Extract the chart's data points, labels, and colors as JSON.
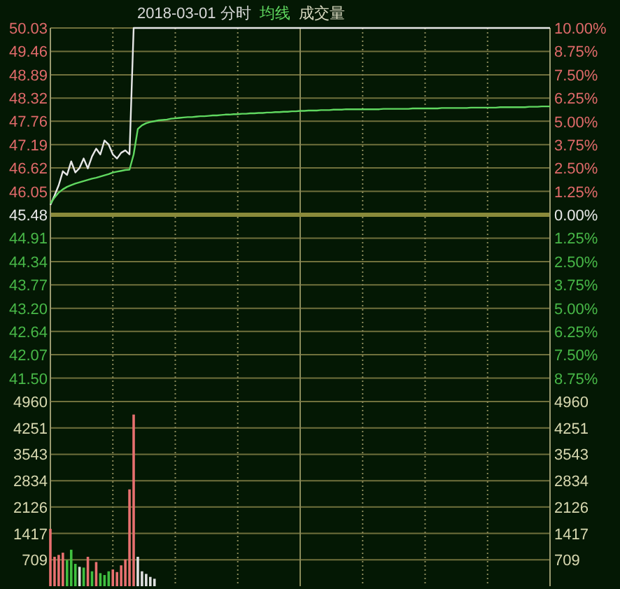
{
  "chart_data": [
    {
      "type": "line",
      "title": "2018-03-01 分时",
      "legend": "top left",
      "grid": true,
      "categories": [
        null,
        null,
        null,
        null,
        null,
        null,
        null,
        null,
        null,
        null,
        null,
        null,
        null,
        null,
        null,
        null,
        null,
        null,
        null,
        null,
        null,
        null,
        null,
        null,
        null,
        null,
        null,
        null,
        null,
        null,
        null,
        null,
        null,
        null,
        null,
        null,
        null,
        null,
        null,
        null,
        null,
        null,
        null,
        null,
        null,
        null,
        null,
        null,
        null,
        null,
        null,
        null,
        null,
        null,
        null,
        null,
        null,
        null,
        null,
        null,
        null,
        null,
        null,
        null,
        null,
        null,
        null,
        null,
        null,
        null,
        null,
        null,
        null,
        null,
        null,
        null,
        null,
        null,
        null,
        null,
        null,
        null,
        null,
        null,
        null,
        null,
        null,
        null,
        null,
        null,
        null,
        null,
        null,
        null,
        null,
        null,
        null,
        null,
        null,
        null,
        null,
        null,
        null,
        null,
        null,
        null,
        null,
        null,
        null,
        null,
        null,
        null,
        null,
        null,
        null,
        null,
        null,
        null,
        null,
        null,
        null
      ],
      "series": [
        {
          "color": "#e8e8e8",
          "values": [
            45.72,
            45.95,
            46.2,
            46.54,
            46.45,
            46.78,
            46.51,
            46.62,
            46.85,
            46.61,
            46.9,
            47.09,
            46.95,
            47.29,
            47.19,
            46.95,
            46.85,
            46.99,
            47.05,
            46.95,
            50.03,
            50.03,
            50.03,
            50.03,
            50.03,
            50.03,
            50.03,
            50.03,
            50.03,
            50.03,
            50.03,
            50.03,
            50.03,
            50.03,
            50.03,
            50.03,
            50.03,
            50.03,
            50.03,
            50.03,
            50.03,
            50.03,
            50.03,
            50.03,
            50.03,
            50.03,
            50.03,
            50.03,
            50.03,
            50.03,
            50.03,
            50.03,
            50.03,
            50.03,
            50.03,
            50.03,
            50.03,
            50.03,
            50.03,
            50.03,
            50.03,
            50.03,
            50.03,
            50.03,
            50.03,
            50.03,
            50.03,
            50.03,
            50.03,
            50.03,
            50.03,
            50.03,
            50.03,
            50.03,
            50.03,
            50.03,
            50.03,
            50.03,
            50.03,
            50.03,
            50.03,
            50.03,
            50.03,
            50.03,
            50.03,
            50.03,
            50.03,
            50.03,
            50.03,
            50.03,
            50.03,
            50.03,
            50.03,
            50.03,
            50.03,
            50.03,
            50.03,
            50.03,
            50.03,
            50.03,
            50.03,
            50.03,
            50.03,
            50.03,
            50.03,
            50.03,
            50.03,
            50.03,
            50.03,
            50.03,
            50.03,
            50.03,
            50.03,
            50.03,
            50.03,
            50.03,
            50.03,
            50.03,
            50.03,
            50.03,
            50.03
          ]
        },
        {
          "name": "均线",
          "color": "#60d860",
          "values": [
            45.75,
            45.9,
            46.02,
            46.1,
            46.16,
            46.2,
            46.24,
            46.27,
            46.3,
            46.33,
            46.36,
            46.38,
            46.41,
            46.44,
            46.47,
            46.51,
            46.53,
            46.55,
            46.57,
            46.58,
            46.95,
            47.57,
            47.66,
            47.71,
            47.74,
            47.76,
            47.78,
            47.79,
            47.8,
            47.82,
            47.83,
            47.84,
            47.85,
            47.86,
            47.86,
            47.87,
            47.88,
            47.88,
            47.89,
            47.9,
            47.9,
            47.91,
            47.92,
            47.92,
            47.93,
            47.93,
            47.94,
            47.94,
            47.95,
            47.95,
            47.96,
            47.96,
            47.97,
            47.97,
            47.98,
            47.98,
            47.99,
            47.99,
            48.0,
            48.0,
            48.01,
            48.01,
            48.02,
            48.02,
            48.02,
            48.03,
            48.03,
            48.03,
            48.04,
            48.04,
            48.04,
            48.05,
            48.05,
            48.05,
            48.05,
            48.05,
            48.05,
            48.05,
            48.05,
            48.05,
            48.06,
            48.06,
            48.06,
            48.06,
            48.06,
            48.06,
            48.06,
            48.07,
            48.07,
            48.07,
            48.07,
            48.07,
            48.07,
            48.07,
            48.08,
            48.08,
            48.08,
            48.08,
            48.08,
            48.08,
            48.08,
            48.09,
            48.09,
            48.09,
            48.09,
            48.09,
            48.09,
            48.09,
            48.1,
            48.1,
            48.1,
            48.1,
            48.1,
            48.1,
            48.1,
            48.11,
            48.11,
            48.11,
            48.12,
            48.12,
            48.12
          ]
        }
      ],
      "ylim": [
        40.93,
        50.03
      ],
      "yticks": [
        50.03,
        49.46,
        48.89,
        48.32,
        47.76,
        47.19,
        46.62,
        46.05,
        45.48,
        44.91,
        44.34,
        43.77,
        {
          "value": 43.2,
          "label": "43.20"
        },
        42.64,
        42.07,
        {
          "value": 41.5,
          "label": "41.50"
        }
      ],
      "y2lim": [
        -10,
        10
      ],
      "y2ticks": [
        {
          "value": 10,
          "label": "10.00%"
        },
        {
          "value": 8.75,
          "label": "8.75%"
        },
        {
          "value": 7.5,
          "label": "7.50%"
        },
        {
          "value": 6.25,
          "label": "6.25%"
        },
        {
          "value": 5,
          "label": "5.00%"
        },
        {
          "value": 3.75,
          "label": "3.75%"
        },
        {
          "value": 2.5,
          "label": "2.50%"
        },
        {
          "value": 1.25,
          "label": "1.25%"
        },
        {
          "value": 0,
          "label": "0.00%"
        },
        {
          "value": -1.25,
          "label": "1.25%"
        },
        {
          "value": -2.5,
          "label": "2.50%"
        },
        {
          "value": -3.75,
          "label": "3.75%"
        },
        {
          "value": -5,
          "label": "5.00%"
        },
        {
          "value": -6.25,
          "label": "6.25%"
        },
        {
          "value": -7.5,
          "label": "7.50%"
        },
        {
          "value": -8.75,
          "label": "8.75%"
        }
      ],
      "ref_lines": [
        {
          "axis": "y",
          "value": 45.48,
          "color": "#8a8a3a"
        }
      ]
    },
    {
      "type": "bar",
      "legend": "top left",
      "grid": true,
      "categories": [
        null,
        null,
        null,
        null,
        null,
        null,
        null,
        null,
        null,
        null,
        null,
        null,
        null,
        null,
        null,
        null,
        null,
        null,
        null,
        null,
        null,
        null,
        null,
        null,
        null,
        null,
        null,
        null,
        null,
        null,
        null,
        null,
        null,
        null,
        null,
        null,
        null,
        null,
        null,
        null,
        null,
        null,
        null,
        null,
        null,
        null,
        null,
        null,
        null,
        null,
        null,
        null,
        null,
        null,
        null,
        null,
        null,
        null,
        null,
        null,
        null,
        null,
        null,
        null,
        null,
        null,
        null,
        null,
        null,
        null,
        null,
        null,
        null,
        null,
        null,
        null,
        null,
        null,
        null,
        null,
        null,
        null,
        null,
        null,
        null,
        null,
        null,
        null,
        null,
        null,
        null,
        null,
        null,
        null,
        null,
        null,
        null,
        null,
        null,
        null,
        null,
        null,
        null,
        null,
        null,
        null,
        null,
        null,
        null,
        null,
        null,
        null,
        null,
        null,
        null,
        null,
        null,
        null,
        null,
        null,
        null
      ],
      "series": [
        {
          "name": "成交量",
          "values": [
            1540,
            790,
            840,
            900,
            700,
            980,
            600,
            520,
            500,
            790,
            400,
            650,
            350,
            300,
            400,
            450,
            380,
            560,
            720,
            2600,
            4610,
            790,
            400,
            330,
            250,
            200,
            null,
            null,
            null,
            null,
            null,
            null,
            null,
            null,
            null,
            null,
            null,
            null,
            null,
            null,
            null,
            null,
            null,
            null,
            null,
            null,
            null,
            null,
            null,
            null,
            null,
            null,
            null,
            null,
            null,
            null,
            null,
            null,
            null,
            null,
            null,
            null,
            null,
            null,
            null,
            null,
            null,
            null,
            null,
            null,
            null,
            null,
            null,
            null,
            null,
            null,
            null,
            null,
            null,
            null,
            null,
            null,
            null,
            null,
            null,
            null,
            null,
            null,
            null,
            null,
            null,
            null,
            null,
            null,
            null,
            null,
            null,
            null,
            null,
            null,
            null,
            null,
            null,
            null,
            null,
            null,
            null,
            null,
            null,
            null,
            null,
            null,
            null,
            null,
            null,
            null,
            null,
            null,
            null,
            null,
            null
          ],
          "colors": [
            "#e87070",
            "#e87070",
            "#e87070",
            "#e87070",
            "#40c040",
            "#40c040",
            "#40c040",
            "#e0e0e0",
            "#40c040",
            "#e87070",
            "#40c040",
            "#e87070",
            "#40c040",
            "#40c040",
            "#40c040",
            "#e87070",
            "#e87070",
            "#e87070",
            "#e87070",
            "#e87070",
            "#e87070",
            "#e0e0e0",
            "#e0e0e0",
            "#e0e0e0",
            "#e0e0e0",
            "#e0e0e0",
            null,
            null,
            null,
            null,
            null,
            null,
            null,
            null,
            null,
            null,
            null,
            null,
            null,
            null,
            null,
            null,
            null,
            null,
            null,
            null,
            null,
            null,
            null,
            null,
            null,
            null,
            null,
            null,
            null,
            null,
            null,
            null,
            null,
            null,
            null,
            null,
            null,
            null,
            null,
            null,
            null,
            null,
            null,
            null,
            null,
            null,
            null,
            null,
            null,
            null,
            null,
            null,
            null,
            null,
            null,
            null,
            null,
            null,
            null,
            null,
            null,
            null,
            null,
            null,
            null,
            null,
            null,
            null,
            null,
            null,
            null,
            null,
            null,
            null,
            null,
            null,
            null,
            null,
            null,
            null,
            null,
            null,
            null,
            null,
            null,
            null,
            null,
            null,
            null,
            null,
            null,
            null,
            null,
            null,
            null
          ]
        }
      ],
      "ylim": [
        0,
        4960
      ],
      "yticks": [
        4960,
        4251,
        3543,
        2834,
        2126,
        1417,
        709
      ],
      "y2lim": [
        0,
        4960
      ],
      "y2ticks": [
        4960,
        4251,
        3543,
        2834,
        2126,
        1417,
        709
      ]
    }
  ]
}
